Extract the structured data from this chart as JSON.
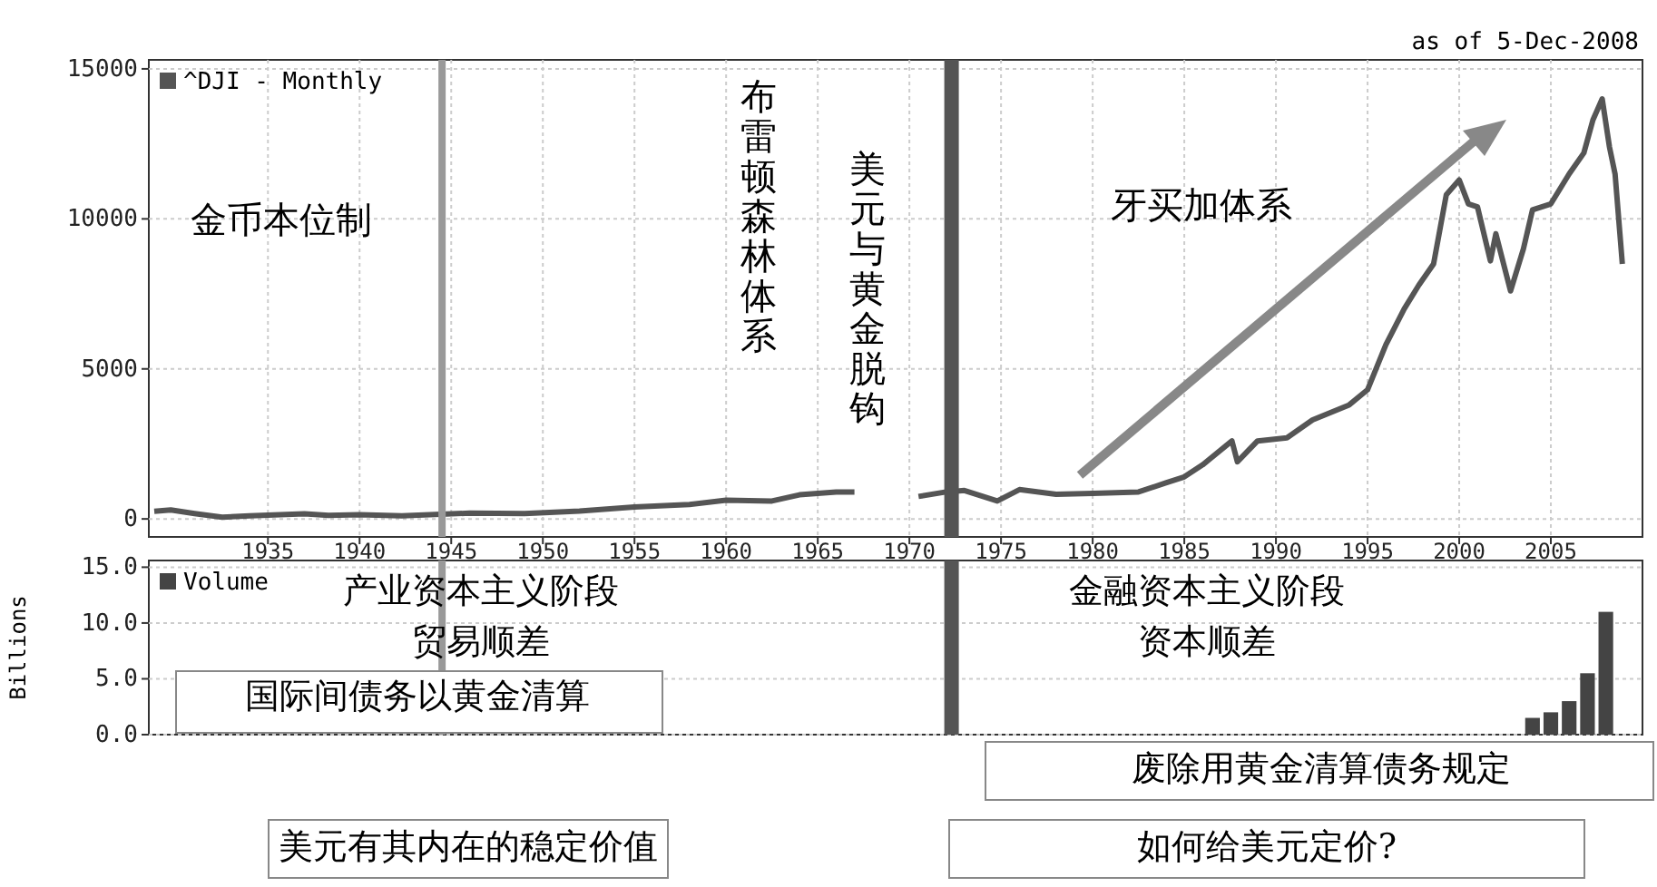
{
  "chart_data": [
    {
      "type": "line",
      "title": "as of  5-Dec-2008",
      "series": [
        {
          "name": "^DJI - Monthly",
          "color": "#555555",
          "x": [
            1928.8,
            1929.7,
            1931,
            1932.5,
            1934,
            1937,
            1938.3,
            1940,
            1942.3,
            1946,
            1949,
            1952,
            1955,
            1958,
            1960,
            1962.5,
            1964,
            1966,
            1967
          ],
          "values": [
            250,
            300,
            180,
            60,
            100,
            170,
            120,
            140,
            100,
            190,
            180,
            260,
            400,
            480,
            620,
            600,
            800,
            900,
            900
          ]
        },
        {
          "color": "#555555",
          "x": [
            1970.5,
            1972,
            1973,
            1974.8,
            1976,
            1978,
            1980,
            1982.5,
            1984,
            1985,
            1986,
            1987.6,
            1987.9,
            1989,
            1990.6,
            1992,
            1994,
            1995,
            1996,
            1997,
            1997.8,
            1998.6,
            1999.3,
            2000,
            2000.5,
            2001,
            2001.7,
            2002,
            2002.8,
            2003.5,
            2004,
            2005,
            2006,
            2006.8,
            2007.3,
            2007.8,
            2008.2,
            2008.5,
            2008.9
          ],
          "values": [
            750,
            900,
            950,
            600,
            980,
            820,
            850,
            900,
            1200,
            1400,
            1800,
            2600,
            1900,
            2600,
            2700,
            3300,
            3800,
            4300,
            5800,
            7000,
            7800,
            8500,
            10800,
            11300,
            10500,
            10400,
            8600,
            9500,
            7600,
            9000,
            10300,
            10500,
            11500,
            12200,
            13300,
            14000,
            12400,
            11500,
            8500
          ]
        }
      ],
      "xlim": [
        1928.5,
        2010
      ],
      "ylim": [
        -600,
        15300
      ],
      "xticks": [
        1935,
        1940,
        1945,
        1950,
        1955,
        1960,
        1965,
        1970,
        1975,
        1980,
        1985,
        1990,
        1995,
        2000,
        2005
      ],
      "yticks": [
        0,
        5000,
        10000,
        15000
      ],
      "grid": true,
      "legend": "top left",
      "ref_lines": [
        {
          "axis": "x",
          "value": 1944.5,
          "color": "#999999"
        },
        {
          "axis": "x",
          "value": 1972.3,
          "color": "#555555"
        }
      ],
      "annotations": [
        "金币本位制",
        "布雷顿森林体系",
        "美元与黄金脱钩",
        "牙买加体系"
      ]
    },
    {
      "type": "bar",
      "ylabel": "Billions",
      "x": [
        2004,
        2005,
        2006,
        2007,
        2008
      ],
      "series": [
        {
          "name": "Volume",
          "color": "#444444",
          "values": [
            1.5,
            2.0,
            3.0,
            5.5,
            11.0
          ]
        }
      ],
      "xlim": [
        1928.5,
        2010
      ],
      "ylim": [
        0,
        15.6
      ],
      "yticks": [
        {
          "value": 0,
          "label": "0.0"
        },
        {
          "value": 5,
          "label": "5.0"
        },
        {
          "value": 10,
          "label": "10.0"
        },
        {
          "value": 15,
          "label": "15.0"
        }
      ],
      "tick_labels": "y",
      "grid": true,
      "legend": "top left",
      "ref_lines": [
        {
          "axis": "x",
          "value": 1944.5,
          "color": "#999999"
        },
        {
          "axis": "x",
          "value": 1972.3,
          "color": "#555555"
        }
      ],
      "annotations": [
        "产业资本主义阶段",
        "贸易顺差",
        "金融资本主义阶段",
        "资本顺差",
        "国际间债务以黄金清算",
        "废除用黄金清算债务规定",
        "美元有其内在的稳定价值",
        "如何给美元定价?"
      ]
    }
  ]
}
